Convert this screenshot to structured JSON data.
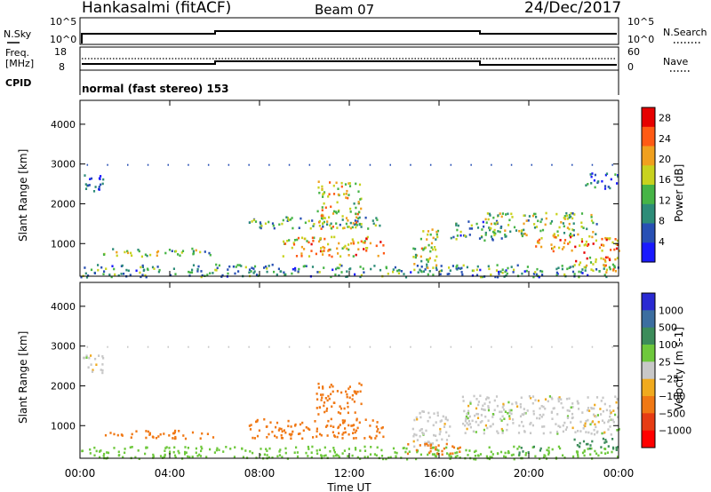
{
  "header": {
    "station": "Hankasalmi (fitACF)",
    "beam": "Beam 07",
    "date": "24/Dec/2017"
  },
  "status_panels": {
    "left_labels": [
      "N.Sky",
      "Freq.",
      "[MHz]",
      "CPID"
    ],
    "right_labels": [
      "N.Search",
      "Nave"
    ],
    "nsky_ticks": [
      "10^5",
      "10^0"
    ],
    "nsearch_ticks": [
      "10^5",
      "10^0"
    ],
    "freq_ticks": [
      "18",
      "8"
    ],
    "nave_ticks": [
      "60",
      "0"
    ],
    "cpid_text": "normal (fast stereo) 153",
    "colors": {
      "line": "#000000"
    }
  },
  "chart_data": [
    {
      "type": "heatmap",
      "title": "",
      "xlabel": "",
      "ylabel": "Slant Range [km]",
      "ylim": [
        180,
        4600
      ],
      "xlim": [
        0,
        24
      ],
      "xticks": [
        "00:00",
        "04:00",
        "08:00",
        "12:00",
        "16:00",
        "20:00",
        "00:00"
      ],
      "yticks": [
        "1000",
        "2000",
        "3000",
        "4000"
      ],
      "colorbar": {
        "label": "Power [dB]",
        "tick_labels": [
          "4",
          "8",
          "12",
          "16",
          "20",
          "24",
          "28"
        ],
        "range": [
          0,
          30
        ],
        "colors": [
          "#1a1aff",
          "#2850b4",
          "#2d8c78",
          "#46b446",
          "#c8d21e",
          "#f0a01e",
          "#ff5a14",
          "#e60000"
        ]
      },
      "regions": [
        {
          "t": [
            0.0,
            1.0
          ],
          "r": [
            2300,
            2800
          ],
          "value": 6
        },
        {
          "t": [
            1.0,
            6.0
          ],
          "r": [
            700,
            900
          ],
          "value": 14
        },
        {
          "t": [
            0.0,
            24.0
          ],
          "r": [
            180,
            500
          ],
          "value": 10
        },
        {
          "t": [
            7.5,
            13.5
          ],
          "r": [
            1400,
            1700
          ],
          "value": 12
        },
        {
          "t": [
            9.0,
            13.5
          ],
          "r": [
            700,
            1200
          ],
          "value": 20
        },
        {
          "t": [
            10.5,
            12.5
          ],
          "r": [
            1400,
            2600
          ],
          "value": 18
        },
        {
          "t": [
            14.8,
            16.0
          ],
          "r": [
            400,
            1400
          ],
          "value": 16
        },
        {
          "t": [
            16.5,
            19.0
          ],
          "r": [
            1100,
            1600
          ],
          "value": 10
        },
        {
          "t": [
            18.0,
            23.0
          ],
          "r": [
            1200,
            1800
          ],
          "value": 14
        },
        {
          "t": [
            20.0,
            24.0
          ],
          "r": [
            800,
            1200
          ],
          "value": 22
        },
        {
          "t": [
            22.0,
            24.0
          ],
          "r": [
            300,
            700
          ],
          "value": 20
        },
        {
          "t": [
            22.5,
            24.0
          ],
          "r": [
            2400,
            2800
          ],
          "value": 6
        }
      ]
    },
    {
      "type": "heatmap",
      "title": "",
      "xlabel": "Time UT",
      "ylabel": "Slant Range [km]",
      "ylim": [
        180,
        4600
      ],
      "xlim": [
        0,
        24
      ],
      "xticks": [
        "00:00",
        "04:00",
        "08:00",
        "12:00",
        "16:00",
        "20:00",
        "00:00"
      ],
      "yticks": [
        "1000",
        "2000",
        "3000",
        "4000"
      ],
      "colorbar": {
        "label": "Velocity [m s-1]",
        "tick_labels": [
          "1000",
          "500",
          "100",
          "25",
          "−25",
          "−100",
          "−500",
          "−1000"
        ],
        "colors": [
          "#2a2ad2",
          "#3c6ea0",
          "#3c8c5a",
          "#6ec83c",
          "#c8c8c8",
          "#f0aa1e",
          "#f07814",
          "#e63c14",
          "#ff0000"
        ]
      },
      "regions": [
        {
          "t": [
            0.0,
            1.0
          ],
          "r": [
            2300,
            2800
          ],
          "value": 0
        },
        {
          "t": [
            1.0,
            6.0
          ],
          "r": [
            700,
            900
          ],
          "value": -150
        },
        {
          "t": [
            0.0,
            24.0
          ],
          "r": [
            180,
            500
          ],
          "value": 60
        },
        {
          "t": [
            7.5,
            13.5
          ],
          "r": [
            700,
            1200
          ],
          "value": -300
        },
        {
          "t": [
            10.5,
            12.5
          ],
          "r": [
            1300,
            2100
          ],
          "value": -400
        },
        {
          "t": [
            14.8,
            16.5
          ],
          "r": [
            500,
            1400
          ],
          "value": 0
        },
        {
          "t": [
            14.5,
            17.0
          ],
          "r": [
            300,
            600
          ],
          "value": -250
        },
        {
          "t": [
            17.0,
            24.0
          ],
          "r": [
            800,
            1800
          ],
          "value": 0
        },
        {
          "t": [
            19.5,
            20.5
          ],
          "r": [
            300,
            500
          ],
          "value": 200
        },
        {
          "t": [
            22.0,
            24.0
          ],
          "r": [
            400,
            700
          ],
          "value": 150
        }
      ]
    }
  ]
}
